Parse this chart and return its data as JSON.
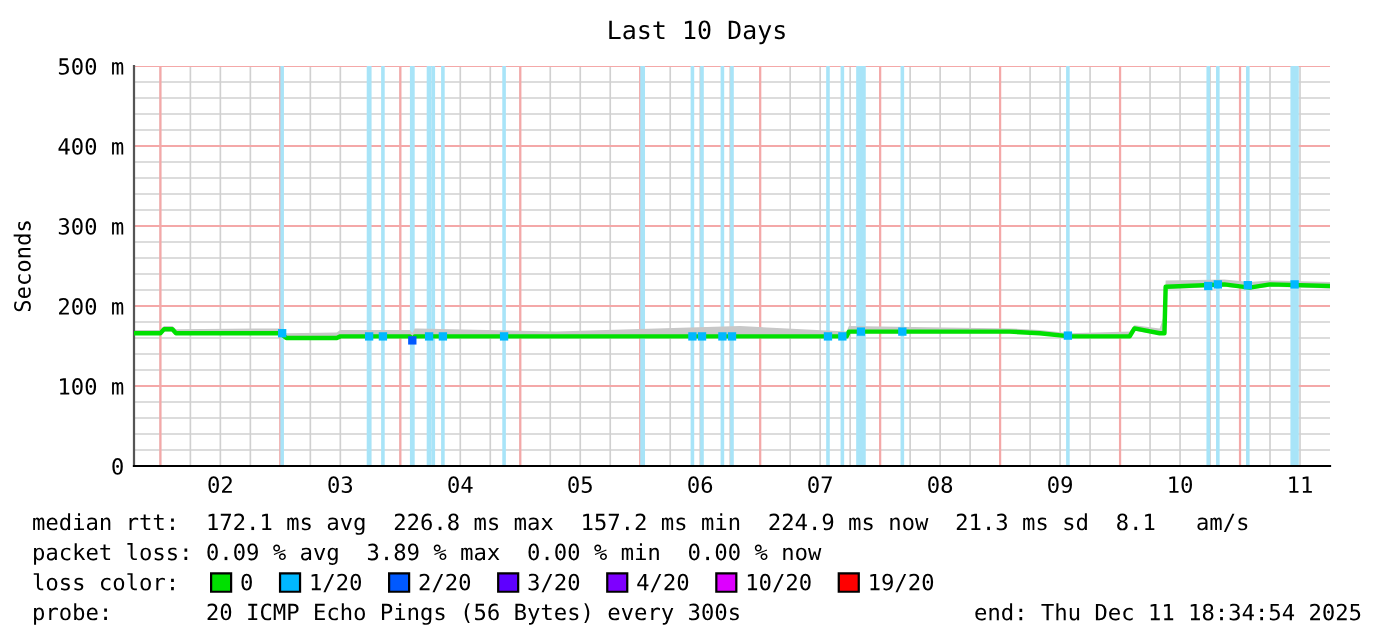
{
  "chart_data": {
    "type": "line",
    "title": "Last 10 Days",
    "ylabel": "Seconds",
    "xlim": [
      1.78,
      11.75
    ],
    "ylim": [
      0,
      500
    ],
    "xticks": [
      {
        "value": 2,
        "label": null
      },
      {
        "value": 2.5,
        "label": "02"
      },
      {
        "value": 3,
        "label": null
      },
      {
        "value": 3.5,
        "label": "03"
      },
      {
        "value": 4,
        "label": null
      },
      {
        "value": 4.5,
        "label": "04"
      },
      {
        "value": 5,
        "label": null
      },
      {
        "value": 5.5,
        "label": "05"
      },
      {
        "value": 6,
        "label": null
      },
      {
        "value": 6.5,
        "label": "06"
      },
      {
        "value": 7,
        "label": null
      },
      {
        "value": 7.5,
        "label": "07"
      },
      {
        "value": 8,
        "label": null
      },
      {
        "value": 8.5,
        "label": "08"
      },
      {
        "value": 9,
        "label": null
      },
      {
        "value": 9.5,
        "label": "09"
      },
      {
        "value": 10,
        "label": null
      },
      {
        "value": 10.5,
        "label": "10"
      },
      {
        "value": 11,
        "label": null
      },
      {
        "value": 11.5,
        "label": "11"
      }
    ],
    "yticks": [
      0,
      {
        "value": 100,
        "label": "100 m"
      },
      {
        "value": 200,
        "label": "200 m"
      },
      {
        "value": 300,
        "label": "300 m"
      },
      {
        "value": 400,
        "label": "400 m"
      },
      {
        "value": 500,
        "label": "500 m"
      }
    ],
    "grid": true,
    "legend": "bottom",
    "legend_title": "loss color:",
    "line_style": "solid",
    "marker": "none",
    "series": [
      {
        "name": "0",
        "color": "#00e000",
        "x": [
          1.78,
          2.0,
          2.03,
          2.1,
          2.13,
          3.0,
          3.05,
          3.47,
          3.5,
          4.08,
          4.1,
          4.12,
          4.15,
          5.3,
          6.83,
          7.72,
          7.74,
          9.08,
          9.33,
          9.58,
          10.08,
          10.12,
          10.33,
          10.37,
          10.38,
          10.87,
          11.08,
          11.25,
          11.75
        ],
        "values": [
          166,
          166,
          171,
          171,
          166,
          166,
          160,
          160,
          162,
          162,
          157,
          162,
          162,
          162,
          162,
          162,
          168,
          168,
          166,
          162,
          162,
          172,
          166,
          166,
          224,
          227,
          223,
          227,
          225
        ],
        "lower": [
          164,
          164,
          168,
          168,
          164,
          164,
          158,
          158,
          160,
          160,
          155,
          160,
          160,
          160,
          160,
          160,
          166,
          166,
          164,
          160,
          160,
          169,
          164,
          164,
          221,
          224,
          221,
          224,
          222
        ],
        "upper": [
          170,
          170,
          175,
          175,
          171,
          172,
          166,
          167,
          170,
          170,
          166,
          172,
          172,
          168,
          175,
          168,
          175,
          172,
          170,
          166,
          168,
          176,
          172,
          190,
          232,
          233,
          230,
          232,
          230
        ]
      },
      {
        "name": "1/20",
        "color": "#00b8ff",
        "type": "scatter",
        "marker": "square",
        "x": [
          3.015,
          3.74,
          3.855,
          4.24,
          4.355,
          4.865,
          6.435,
          6.515,
          6.685,
          6.765,
          7.565,
          7.685,
          7.84,
          8.185,
          9.565,
          10.735,
          10.815,
          11.065,
          11.455
        ],
        "values": [
          166,
          162,
          162,
          162,
          162,
          162,
          162,
          162,
          162,
          162,
          162,
          162,
          168,
          168,
          163,
          225,
          227,
          226,
          227
        ]
      },
      {
        "name": "2/20",
        "color": "#0059ff",
        "type": "scatter",
        "marker": "square",
        "x": [
          4.1
        ],
        "values": [
          157
        ]
      },
      {
        "name": "3/20",
        "color": "#5e00ff"
      },
      {
        "name": "4/20",
        "color": "#7e00ff"
      },
      {
        "name": "10/20",
        "color": "#dd00ff"
      },
      {
        "name": "19/20",
        "color": "#ff0000"
      }
    ],
    "bands": [
      {
        "axis": "x",
        "from": 3.0,
        "to": 3.03,
        "color": "#a8e4f8"
      },
      {
        "axis": "x",
        "from": 3.72,
        "to": 3.76,
        "color": "#a8e4f8"
      },
      {
        "axis": "x",
        "from": 3.84,
        "to": 3.87,
        "color": "#a8e4f8"
      },
      {
        "axis": "x",
        "from": 4.08,
        "to": 4.12,
        "color": "#a8e4f8"
      },
      {
        "axis": "x",
        "from": 4.22,
        "to": 4.26,
        "color": "#a8e4f8"
      },
      {
        "axis": "x",
        "from": 4.26,
        "to": 4.29,
        "color": "#a8e4f8"
      },
      {
        "axis": "x",
        "from": 4.34,
        "to": 4.37,
        "color": "#a8e4f8"
      },
      {
        "axis": "x",
        "from": 4.85,
        "to": 4.88,
        "color": "#a8e4f8"
      },
      {
        "axis": "x",
        "from": 6.0,
        "to": 6.04,
        "color": "#a8e4f8"
      },
      {
        "axis": "x",
        "from": 6.42,
        "to": 6.45,
        "color": "#a8e4f8"
      },
      {
        "axis": "x",
        "from": 6.5,
        "to": 6.53,
        "color": "#a8e4f8"
      },
      {
        "axis": "x",
        "from": 6.67,
        "to": 6.7,
        "color": "#a8e4f8"
      },
      {
        "axis": "x",
        "from": 6.75,
        "to": 6.78,
        "color": "#a8e4f8"
      },
      {
        "axis": "x",
        "from": 7.55,
        "to": 7.58,
        "color": "#a8e4f8"
      },
      {
        "axis": "x",
        "from": 7.67,
        "to": 7.7,
        "color": "#a8e4f8"
      },
      {
        "axis": "x",
        "from": 7.8,
        "to": 7.88,
        "color": "#a8e4f8"
      },
      {
        "axis": "x",
        "from": 8.17,
        "to": 8.2,
        "color": "#a8e4f8"
      },
      {
        "axis": "x",
        "from": 9.55,
        "to": 9.58,
        "color": "#a8e4f8"
      },
      {
        "axis": "x",
        "from": 10.72,
        "to": 10.75,
        "color": "#a8e4f8"
      },
      {
        "axis": "x",
        "from": 10.8,
        "to": 10.83,
        "color": "#a8e4f8"
      },
      {
        "axis": "x",
        "from": 11.05,
        "to": 11.08,
        "color": "#a8e4f8"
      },
      {
        "axis": "x",
        "from": 11.42,
        "to": 11.49,
        "color": "#a8e4f8"
      }
    ],
    "annotations": [
      "median rtt:  172.1 ms avg  226.8 ms max  157.2 ms min  224.9 ms now  21.3 ms sd  8.1   am/s",
      "packet loss: 0.09 % avg  3.89 % max  0.00 % min  0.00 % now",
      "probe:       20 ICMP Echo Pings (56 Bytes) every 300s",
      "end: Thu Dec 11 18:34:54 2025"
    ]
  }
}
